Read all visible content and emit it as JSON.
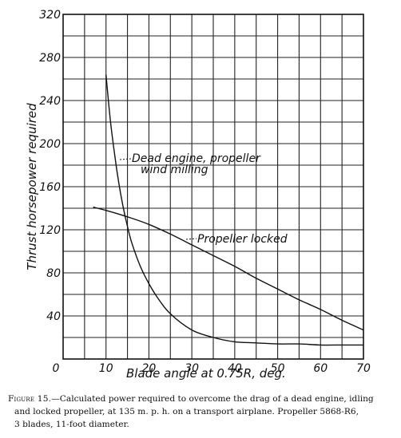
{
  "chart_data": {
    "type": "line",
    "xlabel": "Blade angle at 0.75R, deg.",
    "ylabel": "Thrust horsepower required",
    "xlim": [
      0,
      70
    ],
    "ylim": [
      0,
      320
    ],
    "x_ticks": [
      "0",
      "10",
      "20",
      "30",
      "40",
      "50",
      "60",
      "70"
    ],
    "y_ticks": [
      "40",
      "80",
      "120",
      "160",
      "200",
      "240",
      "280",
      "320"
    ],
    "grid": true,
    "series": [
      {
        "name": "Dead engine, propeller wind milling",
        "x": [
          10,
          11,
          12,
          13,
          14,
          15,
          16,
          18,
          20,
          22,
          25,
          30,
          35,
          40,
          45,
          50,
          55,
          60,
          65,
          70
        ],
        "y": [
          264,
          222,
          190,
          163,
          141,
          123,
          108,
          86,
          70,
          57,
          42,
          27,
          20,
          16,
          15,
          14,
          14,
          13,
          13,
          13
        ]
      },
      {
        "name": "Propeller locked",
        "x": [
          7,
          10,
          15,
          20,
          25,
          30,
          35,
          40,
          45,
          50,
          55,
          60,
          65,
          70
        ],
        "y": [
          141,
          138,
          132,
          125,
          116,
          106,
          96,
          86,
          75,
          65,
          55,
          46,
          36,
          27
        ]
      }
    ],
    "annotations": [
      {
        "text": "Dead engine, propeller",
        "series": 0
      },
      {
        "text": "wind milling",
        "series": 0
      },
      {
        "text": "Propeller locked",
        "series": 1
      }
    ]
  },
  "caption": {
    "lead": "Figure 15.",
    "line1": "—Calculated power required to overcome the drag of a dead engine, idling",
    "line2": "and locked propeller, at 135 m. p. h. on a transport airplane.  Propeller 5868-R6,",
    "line3": "3 blades, 11-foot diameter."
  }
}
